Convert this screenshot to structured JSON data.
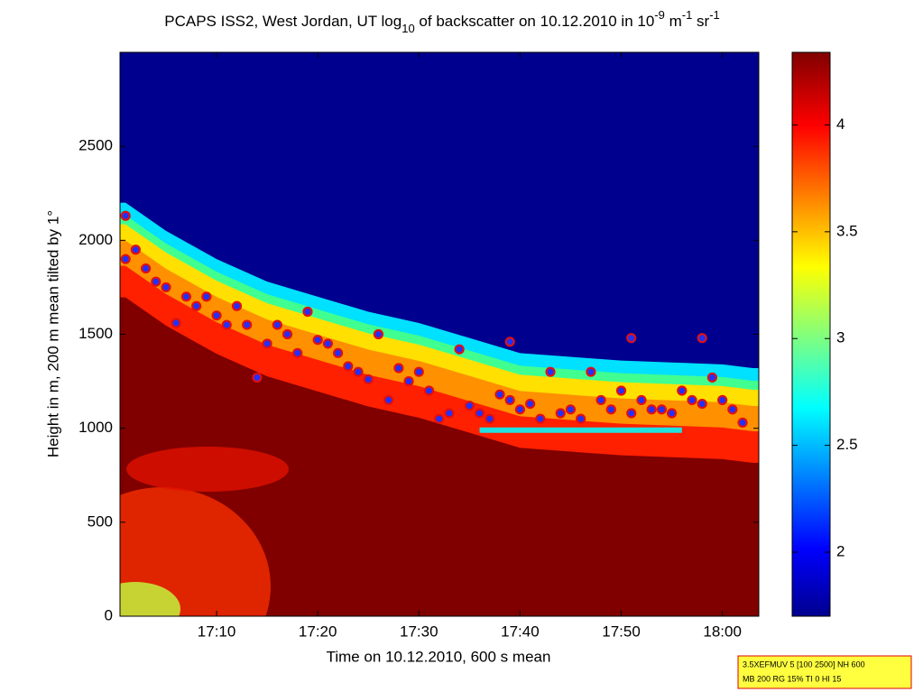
{
  "chart_data": {
    "type": "heatmap",
    "title": [
      "PCAPS ISS2, West Jordan, UT log",
      "10",
      " of backscatter on 10.12.2010 in 10",
      "-9",
      " m",
      "-1",
      " sr",
      "-1"
    ],
    "x_label": "Time on 10.12.2010, 600 s mean",
    "y_label": "Height in m, 200 m mean tilted by 1°",
    "xlim": [
      "17:00:27",
      "18:03:36"
    ],
    "xticks": [
      "17:10",
      "17:20",
      "17:30",
      "17:40",
      "17:50",
      "18:00"
    ],
    "ylim": [
      0,
      3000
    ],
    "yticks": [
      0,
      500,
      1000,
      1500,
      2000,
      2500
    ],
    "clim": [
      1.7,
      4.34
    ],
    "cticks": [
      2,
      2.5,
      3,
      3.5,
      4
    ],
    "signal_top": {
      "x": [
        "17:01",
        "17:05",
        "17:10",
        "17:15",
        "17:20",
        "17:25",
        "17:30",
        "17:35",
        "17:40",
        "17:45",
        "17:50",
        "17:55",
        "18:00",
        "18:03"
      ],
      "y": [
        2200,
        2050,
        1900,
        1780,
        1700,
        1620,
        1560,
        1480,
        1400,
        1380,
        1360,
        1350,
        1340,
        1320
      ]
    },
    "points": {
      "color": "#2030ff",
      "x": [
        "17:01",
        "17:02",
        "17:03",
        "17:04",
        "17:05",
        "17:06",
        "17:07",
        "17:08",
        "17:09",
        "17:10",
        "17:11",
        "17:12",
        "17:13",
        "17:14",
        "17:15",
        "17:16",
        "17:17",
        "17:18",
        "17:19",
        "17:20",
        "17:21",
        "17:22",
        "17:23",
        "17:24",
        "17:25",
        "17:26",
        "17:27",
        "17:28",
        "17:29",
        "17:30",
        "17:31",
        "17:32",
        "17:33",
        "17:34",
        "17:35",
        "17:36",
        "17:37",
        "17:38",
        "17:39",
        "17:40",
        "17:41",
        "17:42",
        "17:43",
        "17:44",
        "17:45",
        "17:46",
        "17:47",
        "17:48",
        "17:49",
        "17:50",
        "17:51",
        "17:52",
        "17:53",
        "17:54",
        "17:55",
        "17:56",
        "17:57",
        "17:58",
        "17:59",
        "18:00",
        "18:01",
        "18:02",
        "17:01",
        "17:39",
        "17:51",
        "17:58"
      ],
      "y": [
        1900,
        1950,
        1850,
        1780,
        1750,
        1560,
        1700,
        1650,
        1700,
        1600,
        1550,
        1650,
        1550,
        1270,
        1450,
        1550,
        1500,
        1400,
        1620,
        1470,
        1450,
        1400,
        1330,
        1300,
        1260,
        1500,
        1150,
        1320,
        1250,
        1300,
        1200,
        1050,
        1080,
        1420,
        1120,
        1080,
        1050,
        1180,
        1150,
        1100,
        1130,
        1050,
        1300,
        1080,
        1100,
        1050,
        1300,
        1150,
        1100,
        1200,
        1080,
        1150,
        1100,
        1100,
        1080,
        1200,
        1150,
        1130,
        1270,
        1150,
        1100,
        1030,
        2130,
        1460,
        1480,
        1480
      ]
    },
    "mixing_line": {
      "color": "#20e0e0",
      "x": [
        "17:36",
        "17:56"
      ],
      "y": [
        990,
        990
      ]
    },
    "info_box": [
      "3.5XEFMUV 5 [100 2500] NH 600",
      "MB 200 RG 15% TI 0 HI 15"
    ]
  }
}
